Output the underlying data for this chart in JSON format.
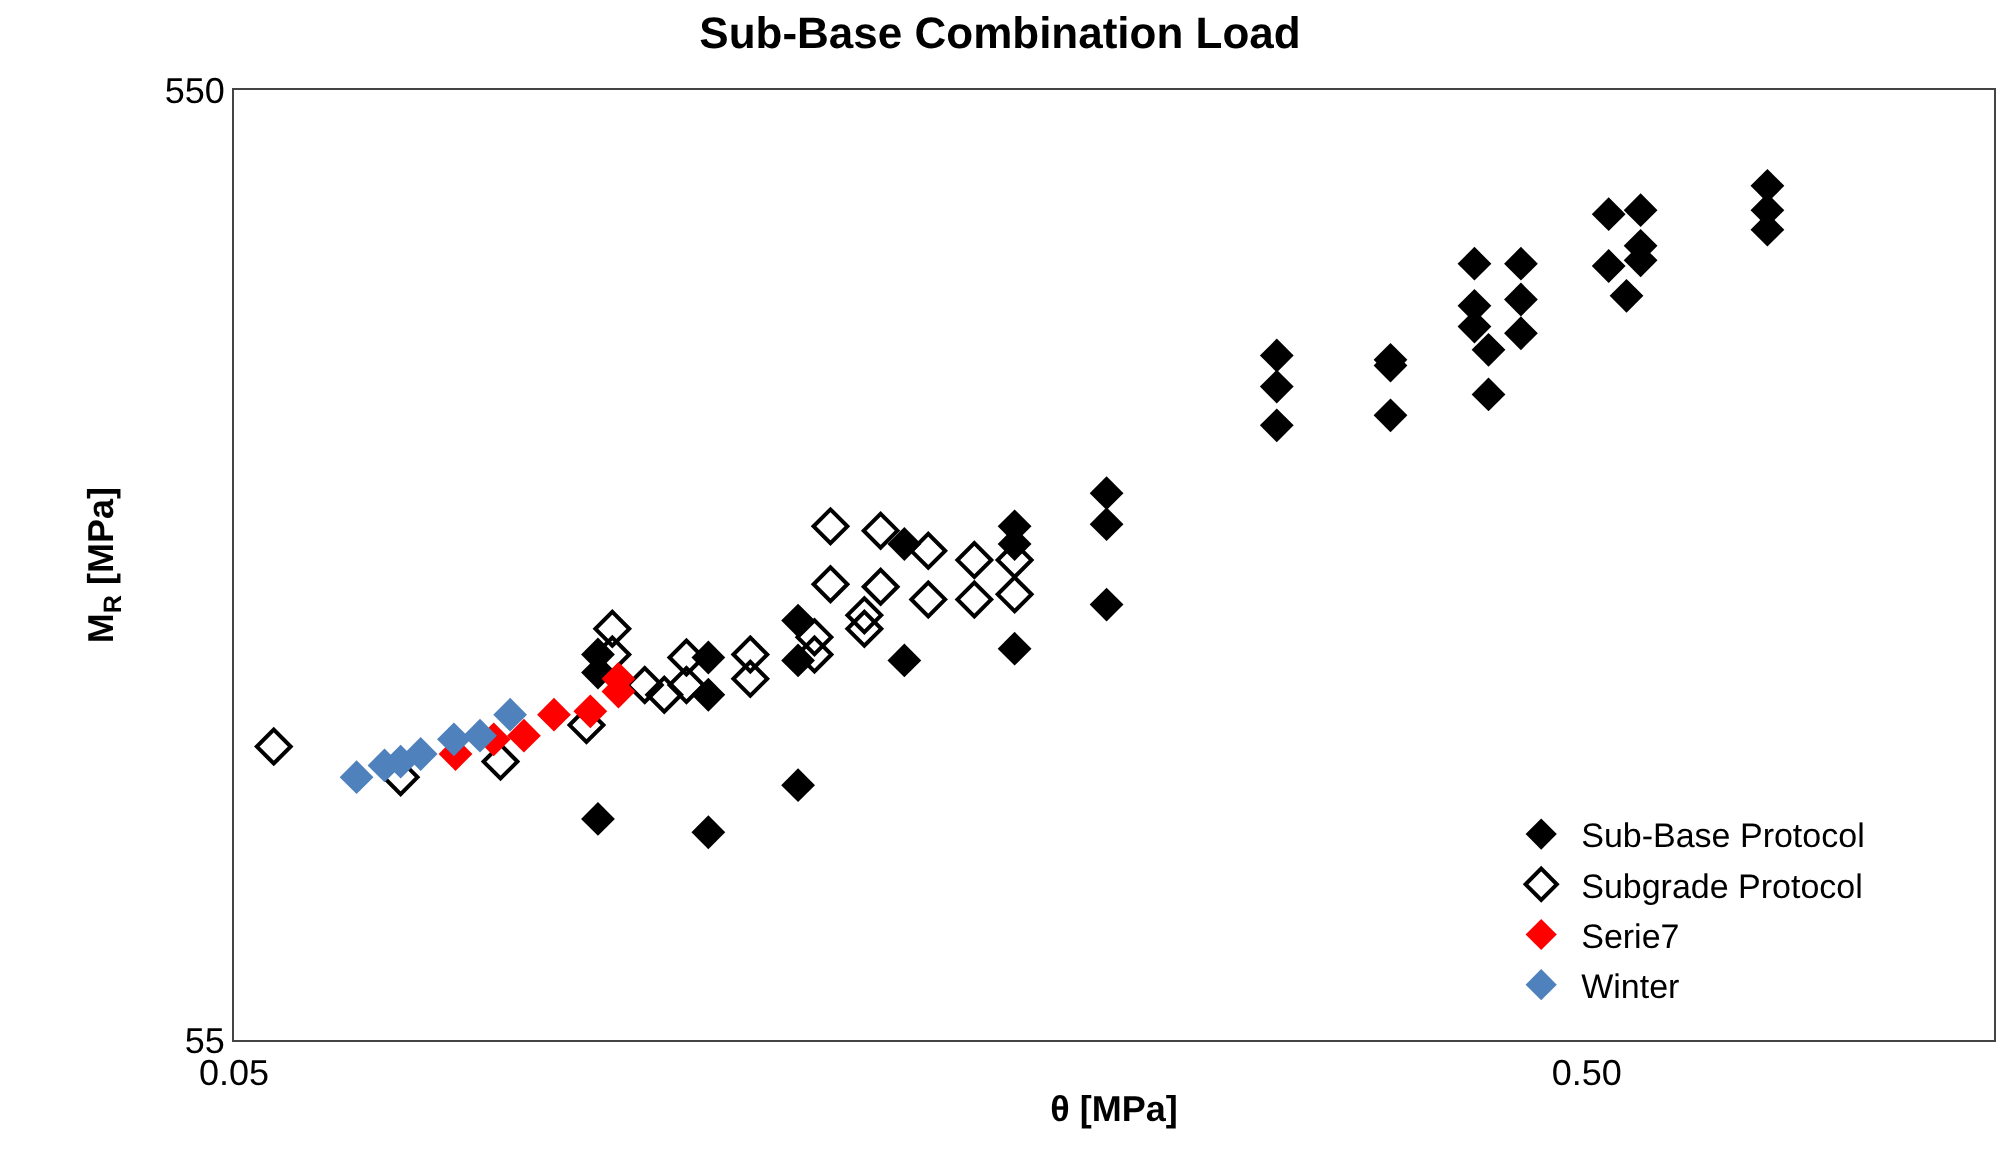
{
  "chart_data": {
    "type": "scatter",
    "title": "Sub-Base Combination Load",
    "xlabel": "θ [MPa]",
    "ylabel": "M$_{R}$ [MPa]",
    "log": "xy",
    "xlim": [
      0.05,
      1
    ],
    "xticks": [
      0.05,
      {
        "value": 0.5,
        "label": "0.50"
      }
    ],
    "ylim": [
      55,
      550
    ],
    "yticks": [
      55,
      550
    ],
    "grid": false,
    "legend": "bottom right",
    "marker": "diamond",
    "series": [
      {
        "name": "Sub-Base Protocol",
        "color": "#000000",
        "x": [
          0.0929,
          0.1121,
          0.1306,
          0.0929,
          0.0929,
          0.1121,
          0.1121,
          0.1306,
          0.1306,
          0.1565,
          0.1565,
          0.1888,
          0.1888,
          0.1888,
          0.2208,
          0.2208,
          0.2208,
          0.295,
          0.295,
          0.295,
          0.358,
          0.358,
          0.358,
          0.413,
          0.413,
          0.413,
          0.423,
          0.423,
          0.447,
          0.447,
          0.447,
          0.519,
          0.548,
          0.548,
          0.519,
          0.548,
          0.535,
          0.68,
          0.68,
          0.68
        ],
        "values": [
          94,
          91,
          102,
          140,
          134,
          139,
          127,
          152,
          138,
          183,
          138,
          191,
          183,
          142,
          207,
          192,
          158,
          289,
          268,
          244,
          286,
          282,
          250,
          361,
          326,
          310,
          293,
          263,
          361,
          331,
          305,
          407,
          411,
          377,
          359,
          364,
          334,
          436,
          411,
          392
        ]
      },
      {
        "name": "Subgrade Protocol",
        "color": "#000000",
        "marker": "diamond-open",
        "x": [
          0.0535,
          0.0664,
          0.0787,
          0.0911,
          0.0952,
          0.0952,
          0.1006,
          0.104,
          0.108,
          0.108,
          0.1204,
          0.1204,
          0.138,
          0.1503,
          0.163,
          0.1763,
          0.1888,
          0.138,
          0.1503,
          0.163,
          0.1763,
          0.1888,
          0.1462,
          0.1462,
          0.1343,
          0.1343
        ],
        "values": [
          112,
          104,
          108,
          118,
          149,
          140,
          130,
          127,
          139,
          130,
          140,
          132,
          191,
          189,
          180,
          176,
          176,
          166,
          165,
          160,
          160,
          162,
          154,
          149,
          146,
          140
        ]
      },
      {
        "name": "Serie7",
        "color": "#ff0000",
        "x": [
          0.0729,
          0.0778,
          0.0819,
          0.0862,
          0.0917,
          0.0962,
          0.0962
        ],
        "values": [
          110,
          114,
          115,
          121,
          122,
          128,
          132
        ]
      },
      {
        "name": "Winter",
        "color": "#4f81bd",
        "x": [
          0.0616,
          0.0646,
          0.0664,
          0.0687,
          0.0727,
          0.076,
          0.08
        ],
        "values": [
          104,
          107,
          108,
          110,
          114,
          115,
          121
        ]
      }
    ]
  }
}
